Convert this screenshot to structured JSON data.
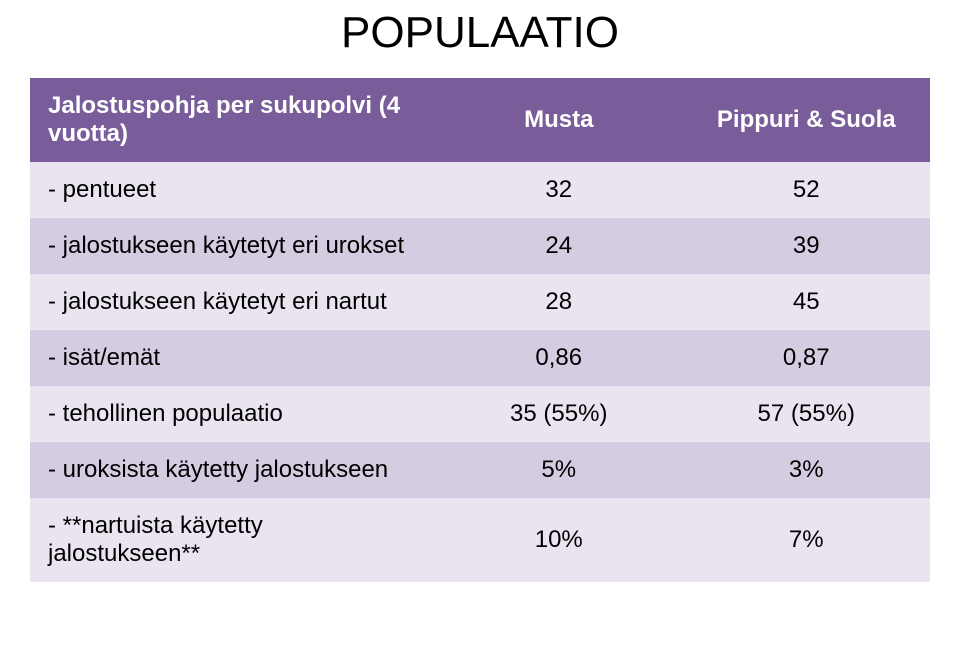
{
  "title": "POPULAATIO",
  "table": {
    "header_bg": "#795d9b",
    "header_fg": "#ffffff",
    "row_odd_bg": "#e9e4ef",
    "row_even_bg": "#d5cce1",
    "text_color": "#000000",
    "columns": [
      {
        "label": "Jalostuspohja per sukupolvi (4 vuotta)",
        "align": "left"
      },
      {
        "label": "Musta",
        "align": "center"
      },
      {
        "label": "Pippuri & Suola",
        "align": "center"
      }
    ],
    "rows": [
      {
        "label": "- pentueet",
        "c1": "32",
        "c2": "52"
      },
      {
        "label": "- jalostukseen käytetyt eri urokset",
        "c1": "24",
        "c2": "39"
      },
      {
        "label": "- jalostukseen käytetyt eri nartut",
        "c1": "28",
        "c2": "45"
      },
      {
        "label": "- isät/emät",
        "c1": "0,86",
        "c2": "0,87"
      },
      {
        "label": "- tehollinen populaatio",
        "c1": "35 (55%)",
        "c2": "57 (55%)"
      },
      {
        "label": "- uroksista käytetty jalostukseen",
        "c1": "5%",
        "c2": "3%"
      },
      {
        "label": "- **nartuista käytetty jalostukseen**",
        "c1": "10%",
        "c2": "7%"
      }
    ]
  }
}
